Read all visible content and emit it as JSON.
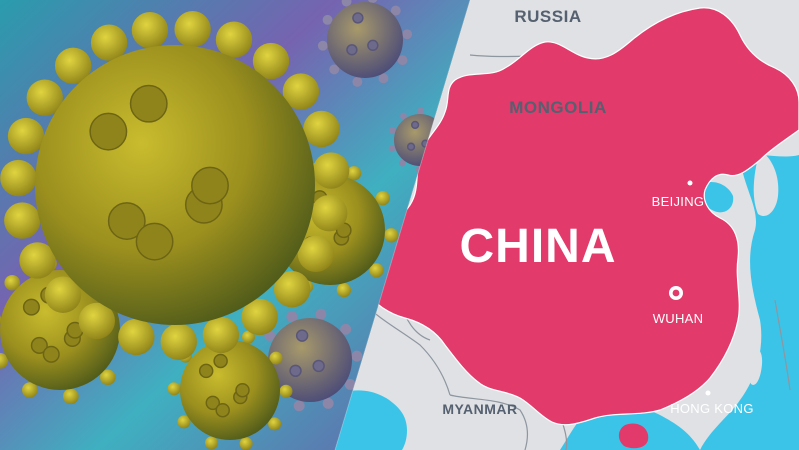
{
  "map": {
    "country_labels": {
      "russia": "RUSSIA",
      "mongolia": "MONGOLIA",
      "china": "CHINA",
      "myanmar": "MYANMAR"
    },
    "city_labels": {
      "beijing": "BEIJING",
      "wuhan": "WUHAN",
      "hong_kong": "HONG KONG"
    }
  },
  "colors": {
    "china_fill": "#e23a6a",
    "land_fill": "#dfe1e4",
    "sea_fill": "#3cc4e8",
    "border": "#8e96a0",
    "label_dark": "#556070",
    "label_light": "#ffffff",
    "virus_body": "#b3a624",
    "virus_spike": "#c8bb2c",
    "background_violet": "#6a5aa0",
    "background_teal": "#2aa6b4"
  },
  "illustration": {
    "subject": "coronavirus-particles"
  }
}
